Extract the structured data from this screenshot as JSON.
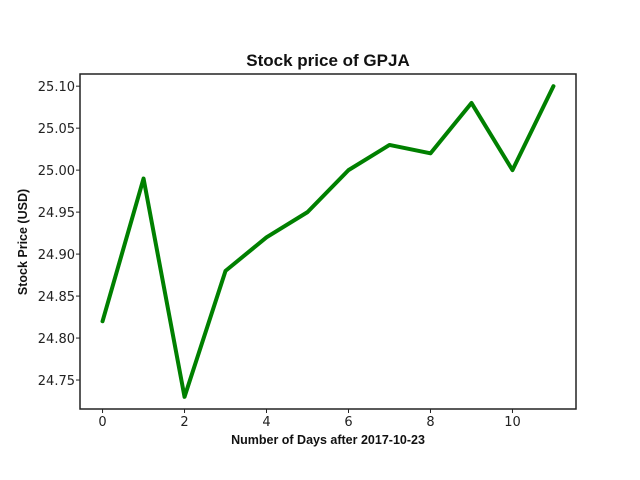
{
  "chart_data": {
    "type": "line",
    "title": "Stock price of GPJA",
    "xlabel": "Number of Days after 2017-10-23",
    "ylabel": "Stock Price (USD)",
    "x": [
      0,
      1,
      2,
      3,
      4,
      5,
      6,
      7,
      8,
      9,
      10,
      11
    ],
    "series": [
      {
        "values": [
          24.82,
          24.99,
          24.73,
          24.88,
          24.92,
          24.95,
          25.0,
          25.03,
          25.02,
          25.08,
          25.0,
          25.1
        ],
        "color": "#008000"
      }
    ],
    "xlim": [
      -0.55,
      11.55
    ],
    "ylim": [
      24.7155,
      25.1145
    ],
    "xticks": [
      0,
      2,
      4,
      6,
      8,
      10
    ],
    "xtick_labels": [
      "0",
      "2",
      "4",
      "6",
      "8",
      "10"
    ],
    "yticks": [
      24.75,
      24.8,
      24.85,
      24.9,
      24.95,
      25.0,
      25.05,
      25.1
    ],
    "ytick_labels": [
      "24.75",
      "24.80",
      "24.85",
      "24.90",
      "24.95",
      "25.00",
      "25.05",
      "25.10"
    ],
    "grid": false,
    "legend": "none"
  }
}
